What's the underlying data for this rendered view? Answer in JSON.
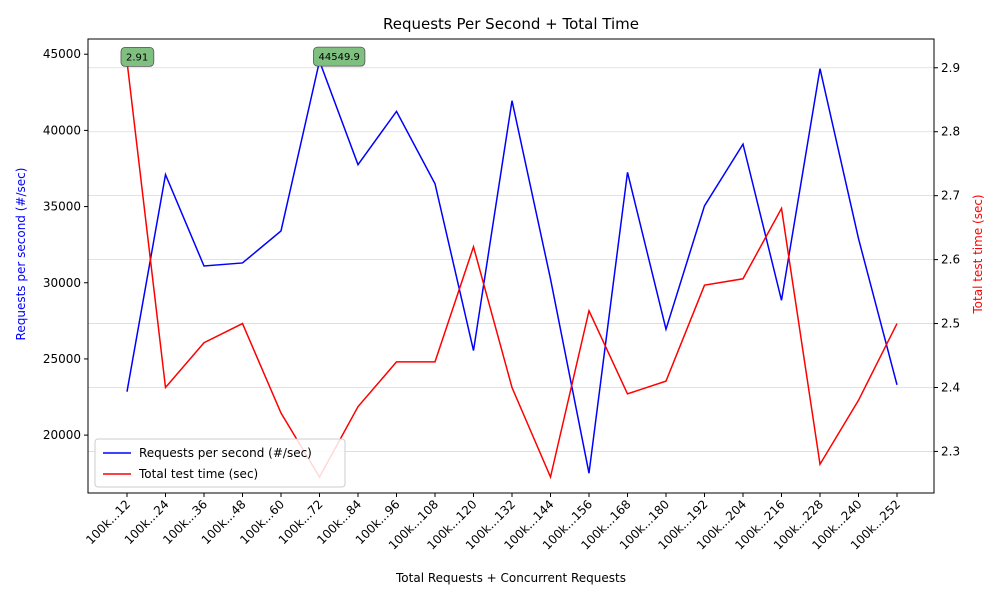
{
  "chart_data": {
    "type": "line",
    "title": "Requests Per Second + Total Time",
    "xlabel": "Total Requests + Concurrent Requests",
    "ylabel_left": "Requests per second (#/sec)",
    "ylabel_right": "Total test time (sec)",
    "categories": [
      "100k...12",
      "100k...24",
      "100k...36",
      "100k...48",
      "100k...60",
      "100k...72",
      "100k...84",
      "100k...96",
      "100k...108",
      "100k...120",
      "100k...132",
      "100k...144",
      "100k...156",
      "100k...168",
      "100k...180",
      "100k...192",
      "100k...204",
      "100k...216",
      "100k...228",
      "100k...240",
      "100k...252"
    ],
    "ylim_left": [
      16200,
      46000
    ],
    "yticks_left": [
      20000,
      25000,
      30000,
      35000,
      40000,
      45000
    ],
    "ylim_right": [
      2.235,
      2.945
    ],
    "yticks_right": [
      2.3,
      2.4,
      2.5,
      2.6,
      2.7,
      2.8,
      2.9
    ],
    "grid": "horizontal",
    "legend_position": "lower-left",
    "series": [
      {
        "name": "Requests per second (#/sec)",
        "axis": "left",
        "color": "#0000ff",
        "values": [
          22850,
          37100,
          31100,
          31300,
          33400,
          44549.9,
          37750,
          41250,
          36500,
          25550,
          41950,
          30250,
          17500,
          37250,
          26950,
          35050,
          39100,
          28850,
          44050,
          32900,
          23300
        ]
      },
      {
        "name": "Total test time (sec)",
        "axis": "right",
        "color": "#ff0000",
        "values": [
          2.91,
          2.4,
          2.47,
          2.5,
          2.36,
          2.26,
          2.37,
          2.44,
          2.44,
          2.62,
          2.4,
          2.26,
          2.52,
          2.39,
          2.41,
          2.56,
          2.57,
          2.68,
          2.28,
          2.38,
          2.5
        ]
      }
    ],
    "annotations": [
      {
        "text": "2.91",
        "index": 0,
        "series": 1
      },
      {
        "text": "44549.9",
        "index": 5,
        "series": 0
      }
    ],
    "marker_color": "#008000",
    "annotation_bg": "#7fbf7f"
  }
}
